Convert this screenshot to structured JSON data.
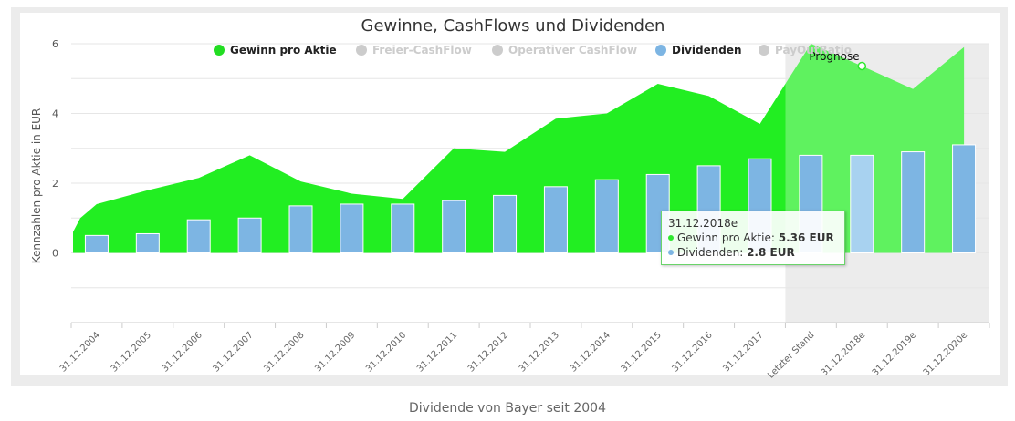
{
  "caption": "Dividende von Bayer seit 2004",
  "tooltip": {
    "date": "31.12.2018e",
    "rows": [
      {
        "label": "Gewinn pro Aktie: ",
        "value": "5.36 EUR",
        "color": "#2ee82e"
      },
      {
        "label": "Dividenden: ",
        "value": "2.8 EUR",
        "color": "#7db5e3"
      }
    ]
  },
  "chart_data": {
    "type": "area",
    "title": "Gewinne, CashFlows und Dividenden",
    "ylabel": "Kennzahlen pro Aktie in EUR",
    "ylim": [
      -2,
      6
    ],
    "yticks": [
      0,
      2,
      4,
      6
    ],
    "grid": true,
    "legend_position": "top",
    "categories": [
      "31.12.2004",
      "31.12.2005",
      "31.12.2006",
      "31.12.2007",
      "31.12.2008",
      "31.12.2009",
      "31.12.2010",
      "31.12.2011",
      "31.12.2012",
      "31.12.2013",
      "31.12.2014",
      "31.12.2015",
      "31.12.2016",
      "31.12.2017",
      "Letzter Stand",
      "31.12.2018e",
      "31.12.2019e",
      "31.12.2020e"
    ],
    "forecast_label": "Prognose",
    "forecast_start_index": 14,
    "legend": [
      {
        "name": "Gewinn pro Aktie",
        "color": "#22dd22",
        "active": true
      },
      {
        "name": "Freier-CashFlow",
        "color": "#cccccc",
        "active": false
      },
      {
        "name": "Operativer CashFlow",
        "color": "#cccccc",
        "active": false
      },
      {
        "name": "Dividenden",
        "color": "#7db5e3",
        "active": true
      },
      {
        "name": "PayOutRatio",
        "color": "#cccccc",
        "active": false
      }
    ],
    "series": [
      {
        "name": "Gewinn pro Aktie",
        "type": "area",
        "color": "#22ee22",
        "start_value": 1.0,
        "values": [
          1.4,
          1.8,
          2.15,
          2.8,
          2.05,
          1.7,
          1.55,
          3.0,
          2.9,
          3.85,
          4.0,
          4.85,
          4.5,
          3.7,
          6.0,
          5.36,
          4.7,
          5.9
        ]
      },
      {
        "name": "Dividenden",
        "type": "bar",
        "color": "#7db5e3",
        "values": [
          0.5,
          0.55,
          0.95,
          1.0,
          1.35,
          1.4,
          1.4,
          1.5,
          1.65,
          1.9,
          2.1,
          2.25,
          2.5,
          2.7,
          2.8,
          2.8,
          2.9,
          3.1
        ]
      }
    ]
  }
}
